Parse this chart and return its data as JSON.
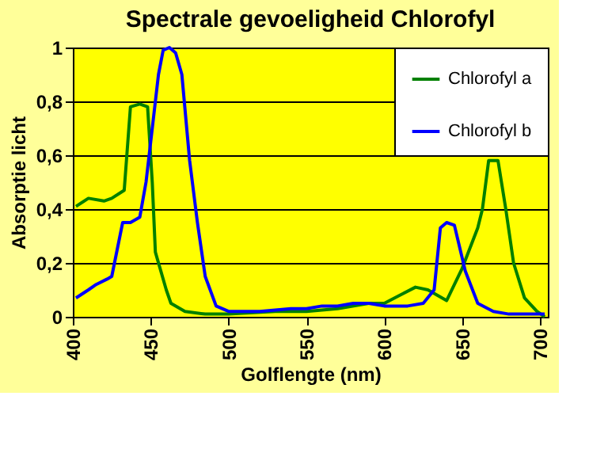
{
  "chart_data": {
    "type": "line",
    "title": "Spectrale gevoeligheid Chlorofyl",
    "xlabel": "Golflengte (nm)",
    "ylabel": "Absorptie licht",
    "xlim": [
      400,
      705
    ],
    "xticks": [
      400,
      450,
      500,
      550,
      600,
      650,
      700
    ],
    "ylim": [
      0,
      1
    ],
    "yticks": [
      0,
      {
        "value": 0.2,
        "label": "0,2"
      },
      {
        "value": 0.4,
        "label": "0,4"
      },
      {
        "value": 0.6,
        "label": "0,6"
      },
      {
        "value": 0.8,
        "label": "0,8"
      },
      1
    ],
    "grid": "y",
    "legend": "top right",
    "marker": "none",
    "line_style": "solid",
    "series": [
      {
        "name": "Chlorofyl a",
        "color": "#008000",
        "x": [
          402,
          410,
          420,
          425,
          433,
          437,
          443,
          448,
          451,
          453,
          460,
          463,
          472,
          485,
          500,
          530,
          550,
          570,
          590,
          600,
          610,
          620,
          628,
          640,
          650,
          660,
          663,
          667,
          673,
          678,
          683,
          690,
          698,
          703
        ],
        "values": [
          0.41,
          0.44,
          0.43,
          0.44,
          0.47,
          0.78,
          0.79,
          0.78,
          0.5,
          0.24,
          0.1,
          0.05,
          0.02,
          0.01,
          0.01,
          0.02,
          0.02,
          0.03,
          0.05,
          0.05,
          0.08,
          0.11,
          0.1,
          0.06,
          0.18,
          0.33,
          0.4,
          0.58,
          0.58,
          0.4,
          0.2,
          0.07,
          0.02,
          0
        ]
      },
      {
        "name": "Chlorofyl b",
        "color": "#0000ff",
        "x": [
          402,
          410,
          415,
          422,
          425,
          432,
          437,
          443,
          447,
          455,
          458,
          462,
          466,
          470,
          475,
          480,
          485,
          492,
          500,
          520,
          540,
          550,
          560,
          570,
          580,
          590,
          600,
          615,
          625,
          632,
          636,
          640,
          645,
          652,
          660,
          670,
          680,
          703
        ],
        "values": [
          0.07,
          0.1,
          0.12,
          0.14,
          0.15,
          0.35,
          0.35,
          0.37,
          0.5,
          0.9,
          0.99,
          1.0,
          0.98,
          0.9,
          0.58,
          0.35,
          0.15,
          0.04,
          0.02,
          0.02,
          0.03,
          0.03,
          0.04,
          0.04,
          0.05,
          0.05,
          0.04,
          0.04,
          0.05,
          0.1,
          0.33,
          0.35,
          0.34,
          0.17,
          0.05,
          0.02,
          0.01,
          0.01
        ]
      }
    ]
  }
}
